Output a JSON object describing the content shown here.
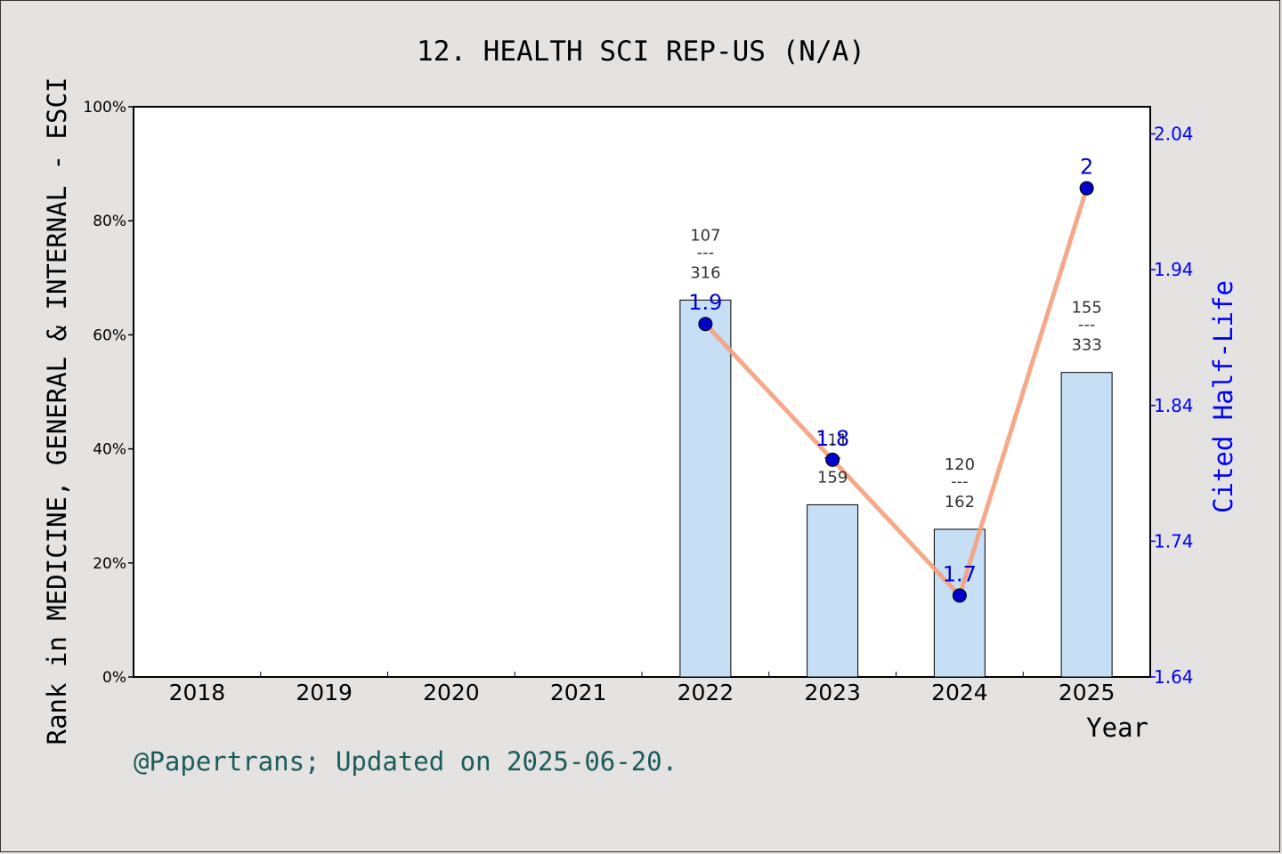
{
  "chart_data": {
    "type": "bar",
    "title": "12. HEALTH SCI REP-US (N/A)",
    "xlabel": "Year",
    "ylabel": "Rank in MEDICINE, GENERAL & INTERNAL - ESCI",
    "y2label": "Cited Half-Life",
    "footer": "@Papertrans; Updated on 2025-06-20.",
    "categories": [
      "2018",
      "2019",
      "2020",
      "2021",
      "2022",
      "2023",
      "2024",
      "2025"
    ],
    "ylim": [
      0,
      100
    ],
    "y_ticks": [
      "0%",
      "20%",
      "40%",
      "60%",
      "80%",
      "100%"
    ],
    "y2lim": [
      1.64,
      2.06
    ],
    "y2_ticks": [
      "1.64",
      "1.74",
      "1.84",
      "1.94",
      "2.04"
    ],
    "bars": [
      {
        "year": "2022",
        "value": 66.1,
        "rank": "107",
        "total": "316",
        "sep": "---"
      },
      {
        "year": "2023",
        "value": 30.2,
        "rank": "111",
        "total": "159",
        "sep": "---"
      },
      {
        "year": "2024",
        "value": 25.9,
        "rank": "120",
        "total": "162",
        "sep": "---"
      },
      {
        "year": "2025",
        "value": 53.4,
        "rank": "155",
        "total": "333",
        "sep": "---"
      }
    ],
    "line": [
      {
        "year": "2022",
        "value": 1.9,
        "label": "1.9"
      },
      {
        "year": "2023",
        "value": 1.8,
        "label": "1.8"
      },
      {
        "year": "2024",
        "value": 1.7,
        "label": "1.7"
      },
      {
        "year": "2025",
        "value": 2.0,
        "label": "2"
      }
    ],
    "colors": {
      "bar_fill": "#c6dff5",
      "line": "#f4a07c",
      "marker": "#0000c8",
      "right_axis": "#0000ff",
      "footer": "#1a5c5a",
      "background": "#e4e3e1",
      "plot_bg": "#ffffff"
    },
    "grid": false
  }
}
